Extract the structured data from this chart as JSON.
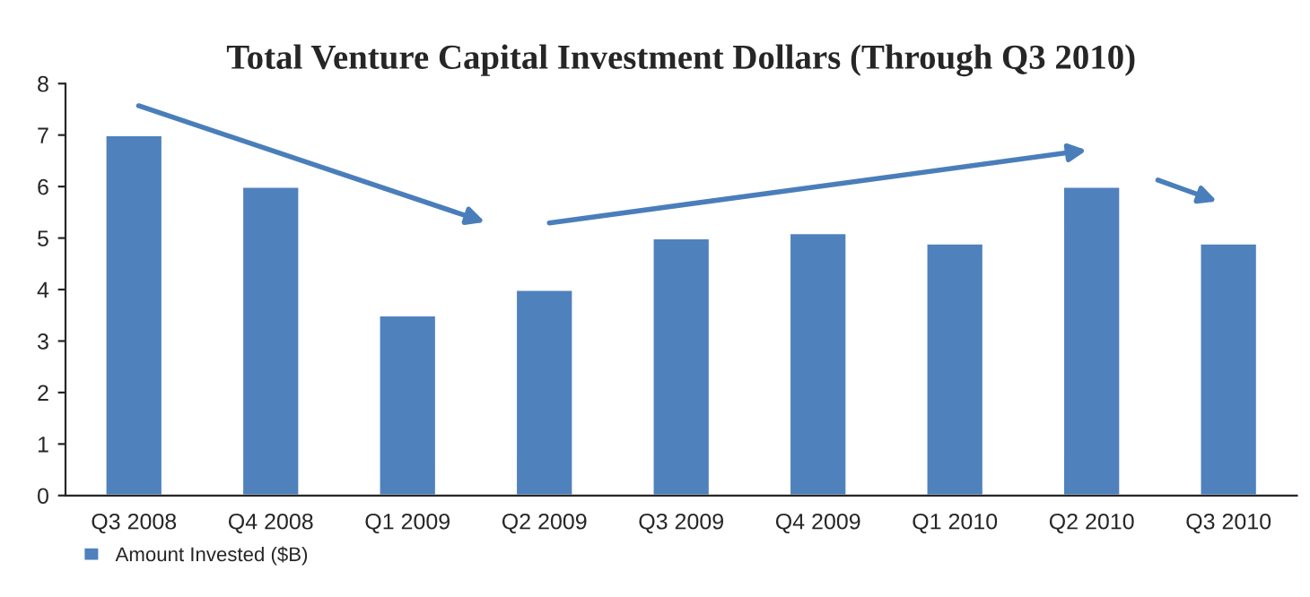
{
  "chart_data": {
    "type": "bar",
    "title": "Total Venture Capital Investment Dollars (Through Q3 2010)",
    "categories": [
      "Q3 2008",
      "Q4 2008",
      "Q1 2009",
      "Q2 2009",
      "Q3 2009",
      "Q4 2009",
      "Q1 2010",
      "Q2 2010",
      "Q3 2010"
    ],
    "series": [
      {
        "name": "Amount Invested ($B)",
        "color": "#4f81bd",
        "values": [
          7,
          6,
          3.5,
          4,
          5,
          5.1,
          4.9,
          6,
          4.9
        ]
      }
    ],
    "ylim": [
      0,
      8
    ],
    "yticks": [
      0,
      1,
      2,
      3,
      4,
      5,
      6,
      7,
      8
    ],
    "grid": false,
    "legend": "bottom left"
  }
}
